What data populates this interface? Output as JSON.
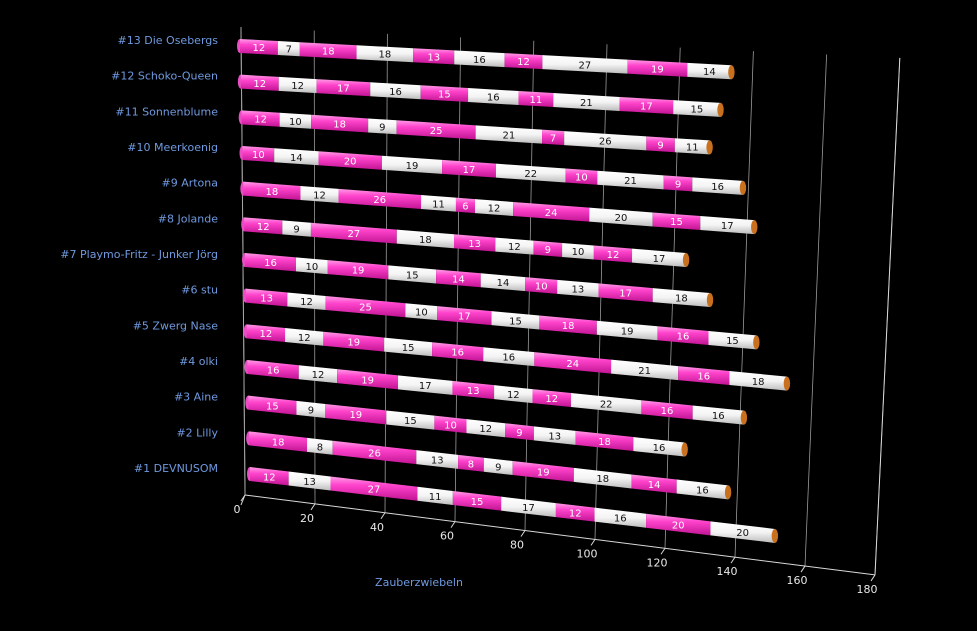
{
  "chart_data": {
    "type": "bar",
    "orientation": "horizontal",
    "stacked": true,
    "style": "3d-cylinder",
    "xlabel": "Zauberzwiebeln",
    "xlim": [
      0,
      180
    ],
    "x_ticks": [
      0,
      20,
      40,
      60,
      80,
      100,
      120,
      140,
      160,
      180
    ],
    "grid": true,
    "legend": "none",
    "colors": {
      "pink": "#ff44cc",
      "white": "#ffffff",
      "background": "#000000",
      "category_text": "#6f9ae0",
      "tick_text": "#e8e8e8",
      "cap": "#c8701e"
    },
    "categories": [
      "#13 Die Osebergs",
      "#12 Schoko-Queen",
      "#11 Sonnenblume",
      "#10 Meerkoenig",
      "#9 Artona",
      "#8 Jolande",
      "#7 Playmo-Fritz - Junker Jörg",
      "#6 stu",
      "#5 Zwerg Nase",
      "#4 olki",
      "#3 Aine",
      "#2 Lilly",
      "#1 DEVNUSOM"
    ],
    "segments": [
      [
        12,
        7,
        18,
        18,
        13,
        16,
        12,
        27,
        19,
        14
      ],
      [
        12,
        12,
        17,
        16,
        15,
        16,
        11,
        21,
        17,
        15
      ],
      [
        12,
        10,
        18,
        9,
        25,
        21,
        7,
        26,
        9,
        11
      ],
      [
        10,
        14,
        20,
        19,
        17,
        22,
        10,
        21,
        9,
        16
      ],
      [
        18,
        12,
        26,
        11,
        6,
        12,
        24,
        20,
        15,
        17
      ],
      [
        12,
        9,
        27,
        18,
        13,
        12,
        9,
        10,
        12,
        17
      ],
      [
        16,
        10,
        19,
        15,
        14,
        14,
        10,
        13,
        17,
        18
      ],
      [
        13,
        12,
        25,
        10,
        17,
        15,
        18,
        19,
        16,
        15
      ],
      [
        12,
        12,
        19,
        15,
        16,
        16,
        24,
        21,
        16,
        18
      ],
      [
        16,
        12,
        19,
        17,
        13,
        12,
        12,
        22,
        16,
        16
      ],
      [
        15,
        9,
        19,
        15,
        10,
        12,
        9,
        13,
        18,
        16
      ],
      [
        18,
        8,
        26,
        13,
        8,
        9,
        19,
        18,
        14,
        16
      ],
      [
        12,
        13,
        27,
        11,
        15,
        17,
        12,
        16,
        20,
        20
      ]
    ]
  }
}
